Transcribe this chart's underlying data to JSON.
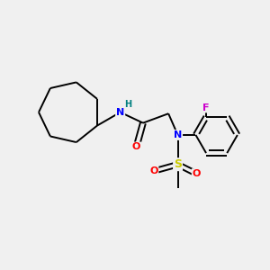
{
  "bg_color": "#f0f0f0",
  "bond_color": "#000000",
  "atom_colors": {
    "N": "#0000ff",
    "O": "#ff0000",
    "F": "#cc00cc",
    "S": "#cccc00",
    "H": "#008080",
    "C": "#000000"
  },
  "figsize": [
    3.0,
    3.0
  ],
  "dpi": 100,
  "lw": 1.4
}
